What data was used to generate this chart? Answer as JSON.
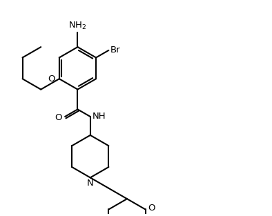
{
  "bg_color": "#ffffff",
  "line_color": "#000000",
  "line_width": 1.5,
  "text_color": "#000000",
  "font_size": 9.5,
  "figsize": [
    3.94,
    3.13
  ],
  "dpi": 100,
  "xlim": [
    0,
    10
  ],
  "ylim": [
    0,
    8
  ]
}
